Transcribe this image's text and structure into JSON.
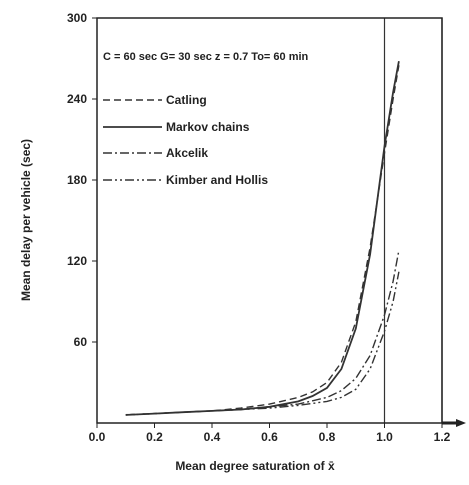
{
  "chart_data": {
    "type": "line",
    "title": "",
    "annotation": "C = 60 sec   G= 30 sec   z = 0.7   To= 60 min",
    "xlabel": "Mean degree saturation of  x̄",
    "ylabel": "Mean delay per vehicle (sec)",
    "xlim": [
      0.0,
      1.2
    ],
    "ylim": [
      0,
      300
    ],
    "x_ticks": [
      "0.0",
      "0.2",
      "0.4",
      "0.6",
      "0.8",
      "1.0",
      "1.2"
    ],
    "y_ticks": [
      "60",
      "120",
      "180",
      "240",
      "300"
    ],
    "reference_lines": [
      1.0,
      1.2
    ],
    "legend_position": "top-left",
    "colors": {
      "line": "#333333",
      "frame": "#222222"
    },
    "series": [
      {
        "name": "Catling",
        "style": "dashed",
        "x": [
          0.1,
          0.2,
          0.3,
          0.4,
          0.5,
          0.6,
          0.7,
          0.75,
          0.8,
          0.85,
          0.9,
          0.95,
          1.0,
          1.03,
          1.05
        ],
        "y": [
          6,
          7,
          8,
          9,
          11,
          14,
          19,
          23,
          30,
          45,
          75,
          130,
          200,
          240,
          265
        ]
      },
      {
        "name": "Markov chains",
        "style": "solid",
        "x": [
          0.1,
          0.2,
          0.3,
          0.4,
          0.5,
          0.6,
          0.7,
          0.75,
          0.8,
          0.85,
          0.9,
          0.95,
          1.0,
          1.03,
          1.05
        ],
        "y": [
          6,
          7,
          8,
          9,
          10,
          12,
          16,
          20,
          26,
          40,
          70,
          125,
          205,
          245,
          268
        ]
      },
      {
        "name": "Akcelik",
        "style": "dashdot",
        "x": [
          0.1,
          0.2,
          0.3,
          0.4,
          0.5,
          0.6,
          0.7,
          0.8,
          0.85,
          0.9,
          0.95,
          1.0,
          1.03,
          1.05
        ],
        "y": [
          6,
          7,
          8,
          9,
          10,
          12,
          14,
          19,
          24,
          33,
          50,
          80,
          105,
          128
        ]
      },
      {
        "name": "Kimber and Hollis",
        "style": "dashdotdot",
        "x": [
          0.1,
          0.2,
          0.3,
          0.4,
          0.5,
          0.6,
          0.7,
          0.8,
          0.85,
          0.9,
          0.95,
          1.0,
          1.03,
          1.05
        ],
        "y": [
          6,
          7,
          8,
          9,
          10,
          11,
          13,
          16,
          19,
          25,
          40,
          68,
          90,
          112
        ]
      }
    ]
  }
}
